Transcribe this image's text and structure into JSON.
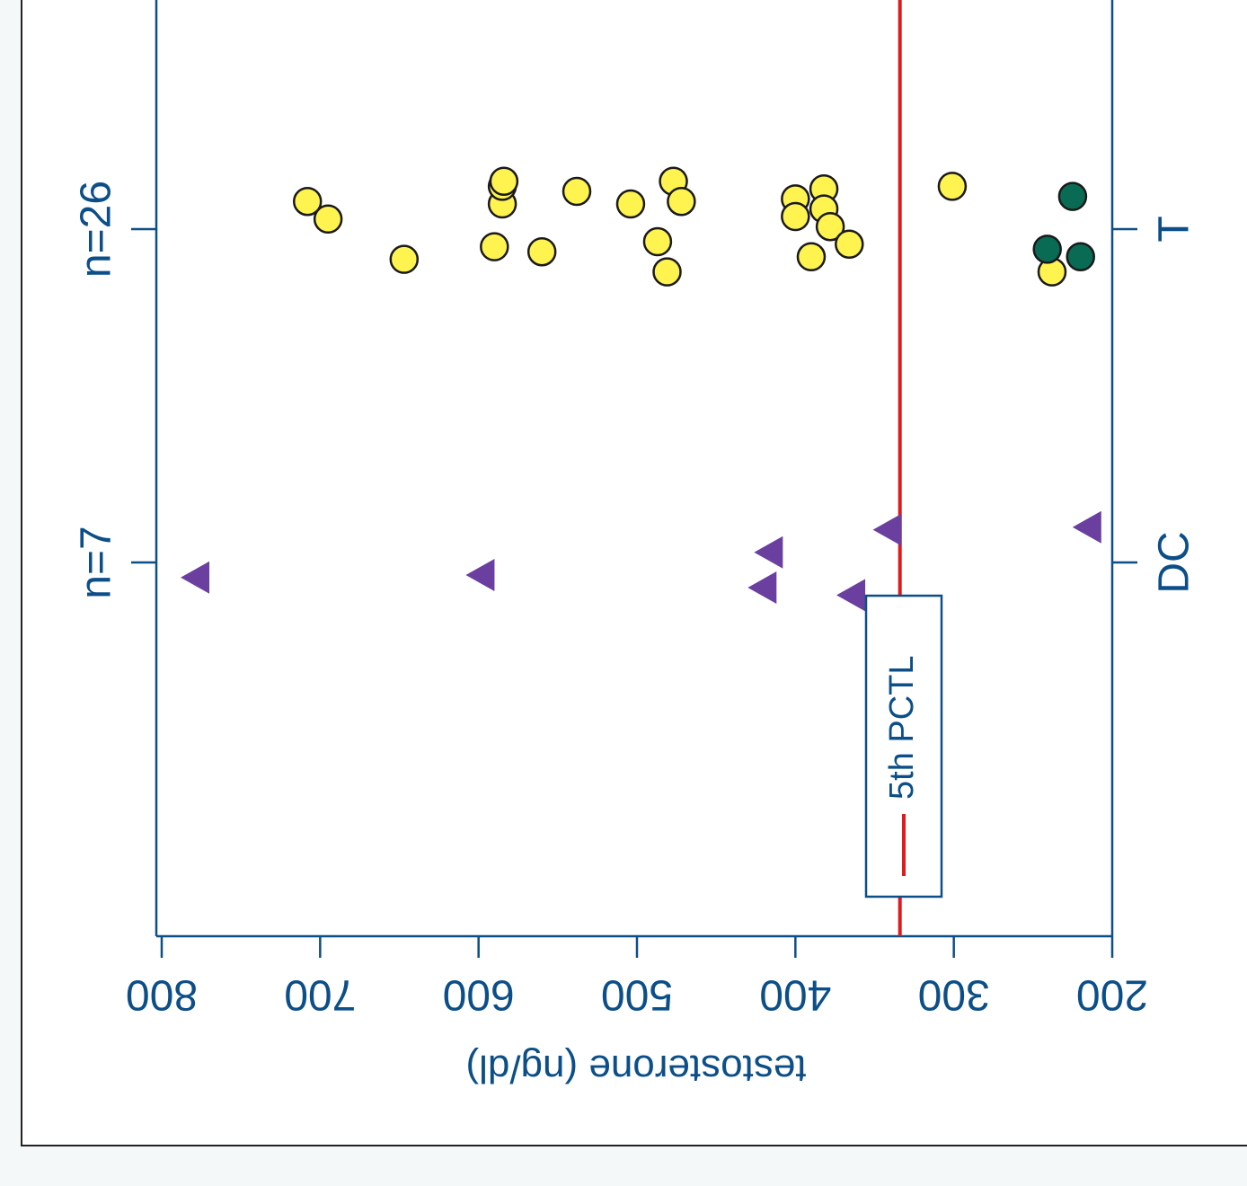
{
  "chart_data": {
    "type": "scatter",
    "orientation": "rotated 180 degrees",
    "ylabel": "testosterone (ng/dl)",
    "ylim": [
      200,
      800
    ],
    "yticks": [
      "800",
      "700",
      "600",
      "500",
      "400",
      "300",
      "200"
    ],
    "categories": [
      "DC",
      "T"
    ],
    "category_counts": [
      "n=7",
      "n=26"
    ],
    "reference_line": {
      "label": "5th PCTL",
      "value": 334,
      "color": "#e31a1c"
    },
    "colors": {
      "axis": "#0c4f88",
      "yellow": "#fff34f",
      "green": "#0a6b55",
      "purple": "#6b3fa0",
      "line": "#e31a1c"
    },
    "series": [
      {
        "group": "DC",
        "marker": "triangle",
        "color": "#6b3fa0",
        "points": [
          {
            "value": 779,
            "jitter": -0.06
          },
          {
            "value": 599,
            "jitter": -0.05
          },
          {
            "value": 421,
            "jitter": -0.1
          },
          {
            "value": 417,
            "jitter": 0.04
          },
          {
            "value": 365,
            "jitter": -0.13
          },
          {
            "value": 342,
            "jitter": 0.13
          },
          {
            "value": 216,
            "jitter": 0.14
          }
        ]
      },
      {
        "group": "T",
        "marker": "circle",
        "color": "#fff34f",
        "points": [
          {
            "value": 708,
            "jitter": 0.11
          },
          {
            "value": 695,
            "jitter": 0.04
          },
          {
            "value": 647,
            "jitter": -0.12
          },
          {
            "value": 560,
            "jitter": -0.09
          },
          {
            "value": 590,
            "jitter": -0.07
          },
          {
            "value": 585,
            "jitter": 0.1
          },
          {
            "value": 585,
            "jitter": 0.17
          },
          {
            "value": 584,
            "jitter": 0.19
          },
          {
            "value": 538,
            "jitter": 0.15
          },
          {
            "value": 504,
            "jitter": 0.1
          },
          {
            "value": 487,
            "jitter": -0.05
          },
          {
            "value": 481,
            "jitter": -0.17
          },
          {
            "value": 477,
            "jitter": 0.19
          },
          {
            "value": 472,
            "jitter": 0.11
          },
          {
            "value": 400,
            "jitter": 0.12
          },
          {
            "value": 400,
            "jitter": 0.05
          },
          {
            "value": 390,
            "jitter": -0.11
          },
          {
            "value": 382,
            "jitter": 0.16
          },
          {
            "value": 382,
            "jitter": 0.08
          },
          {
            "value": 378,
            "jitter": 0.01
          },
          {
            "value": 366,
            "jitter": -0.06
          },
          {
            "value": 301,
            "jitter": 0.17
          },
          {
            "value": 238,
            "jitter": -0.17
          }
        ]
      },
      {
        "group": "T",
        "marker": "circle",
        "color": "#0a6b55",
        "points": [
          {
            "value": 225,
            "jitter": 0.13
          },
          {
            "value": 220,
            "jitter": -0.11
          },
          {
            "value": 241,
            "jitter": -0.08
          }
        ]
      }
    ]
  }
}
